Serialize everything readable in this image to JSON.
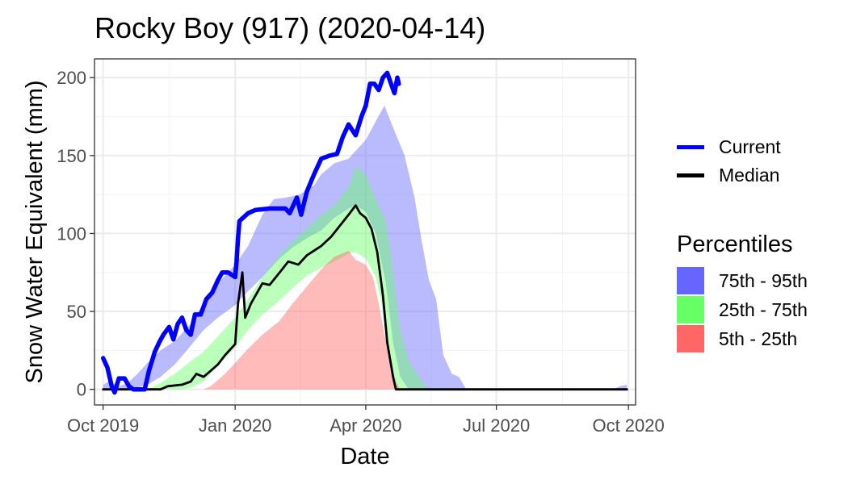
{
  "title": "Rocky Boy (917) (2020-04-14)",
  "chart_data": {
    "type": "area",
    "title": "Rocky Boy (917) (2020-04-14)",
    "xlabel": "Date",
    "ylabel": "Snow Water Equivalent (mm)",
    "x_type": "date",
    "xlim": [
      "2019-09-25",
      "2020-10-06"
    ],
    "ylim": [
      -10,
      212
    ],
    "grid": true,
    "legend_position": "right",
    "x_ticks": [
      {
        "value": "2019-10-01",
        "label": "Oct 2019"
      },
      {
        "value": "2020-01-01",
        "label": "Jan 2020"
      },
      {
        "value": "2020-04-01",
        "label": "Apr 2020"
      },
      {
        "value": "2020-07-01",
        "label": "Jul 2020"
      },
      {
        "value": "2020-10-01",
        "label": "Oct 2020"
      }
    ],
    "y_ticks": [
      0,
      50,
      100,
      150,
      200
    ],
    "colors": {
      "current": "#0000ff",
      "median": "#000000",
      "p75_95": "#6666ff",
      "p25_75": "#66ff66",
      "p5_25": "#ff6666"
    },
    "bands": [
      {
        "name": "75th - 95th",
        "color": "#6666ff",
        "opacity": 0.45,
        "lower": [
          [
            "2019-10-01",
            0
          ],
          [
            "2019-10-10",
            0
          ],
          [
            "2019-10-20",
            0
          ],
          [
            "2019-11-01",
            3
          ],
          [
            "2019-11-10",
            8
          ],
          [
            "2019-11-20",
            16
          ],
          [
            "2019-12-01",
            28
          ],
          [
            "2019-12-10",
            38
          ],
          [
            "2019-12-20",
            46
          ],
          [
            "2020-01-01",
            54
          ],
          [
            "2020-01-10",
            63
          ],
          [
            "2020-01-20",
            72
          ],
          [
            "2020-02-01",
            84
          ],
          [
            "2020-02-10",
            91
          ],
          [
            "2020-02-20",
            97
          ],
          [
            "2020-03-01",
            102
          ],
          [
            "2020-03-10",
            110
          ],
          [
            "2020-03-20",
            116
          ],
          [
            "2020-03-25",
            118
          ],
          [
            "2020-04-01",
            114
          ],
          [
            "2020-04-08",
            100
          ],
          [
            "2020-04-15",
            68
          ],
          [
            "2020-04-20",
            30
          ],
          [
            "2020-04-25",
            8
          ],
          [
            "2020-05-01",
            0
          ],
          [
            "2020-09-30",
            0
          ]
        ],
        "upper": [
          [
            "2019-10-01",
            3
          ],
          [
            "2019-10-05",
            5
          ],
          [
            "2019-10-12",
            2
          ],
          [
            "2019-10-18",
            4
          ],
          [
            "2019-10-25",
            10
          ],
          [
            "2019-11-01",
            17
          ],
          [
            "2019-11-10",
            25
          ],
          [
            "2019-11-20",
            31
          ],
          [
            "2019-12-01",
            42
          ],
          [
            "2019-12-10",
            55
          ],
          [
            "2019-12-20",
            68
          ],
          [
            "2020-01-01",
            80
          ],
          [
            "2020-01-10",
            92
          ],
          [
            "2020-01-20",
            112
          ],
          [
            "2020-01-28",
            122
          ],
          [
            "2020-02-05",
            123
          ],
          [
            "2020-02-15",
            125
          ],
          [
            "2020-02-25",
            131
          ],
          [
            "2020-03-01",
            138
          ],
          [
            "2020-03-10",
            145
          ],
          [
            "2020-03-20",
            148
          ],
          [
            "2020-03-25",
            153
          ],
          [
            "2020-04-01",
            160
          ],
          [
            "2020-04-08",
            172
          ],
          [
            "2020-04-14",
            182
          ],
          [
            "2020-04-20",
            168
          ],
          [
            "2020-04-28",
            150
          ],
          [
            "2020-05-05",
            123
          ],
          [
            "2020-05-10",
            95
          ],
          [
            "2020-05-15",
            70
          ],
          [
            "2020-05-20",
            58
          ],
          [
            "2020-05-25",
            22
          ],
          [
            "2020-05-31",
            10
          ],
          [
            "2020-06-05",
            8
          ],
          [
            "2020-06-10",
            0
          ],
          [
            "2020-09-20",
            0
          ],
          [
            "2020-09-25",
            2
          ],
          [
            "2020-09-30",
            3
          ]
        ]
      },
      {
        "name": "25th - 75th",
        "color": "#66ff66",
        "opacity": 0.45,
        "lower": [
          [
            "2019-10-01",
            0
          ],
          [
            "2019-11-15",
            0
          ],
          [
            "2019-11-25",
            0
          ],
          [
            "2019-12-01",
            1
          ],
          [
            "2019-12-10",
            5
          ],
          [
            "2019-12-20",
            15
          ],
          [
            "2020-01-01",
            27
          ],
          [
            "2020-01-10",
            38
          ],
          [
            "2020-01-20",
            48
          ],
          [
            "2020-02-01",
            57
          ],
          [
            "2020-02-10",
            65
          ],
          [
            "2020-02-20",
            73
          ],
          [
            "2020-03-01",
            78
          ],
          [
            "2020-03-10",
            82
          ],
          [
            "2020-03-20",
            87
          ],
          [
            "2020-03-25",
            88
          ],
          [
            "2020-04-01",
            84
          ],
          [
            "2020-04-08",
            72
          ],
          [
            "2020-04-12",
            55
          ],
          [
            "2020-04-16",
            30
          ],
          [
            "2020-04-20",
            8
          ],
          [
            "2020-04-22",
            0
          ],
          [
            "2020-09-30",
            0
          ]
        ],
        "upper": [
          [
            "2019-10-01",
            0
          ],
          [
            "2019-11-01",
            0
          ],
          [
            "2019-11-10",
            4
          ],
          [
            "2019-11-20",
            10
          ],
          [
            "2019-12-01",
            18
          ],
          [
            "2019-12-10",
            24
          ],
          [
            "2019-12-20",
            34
          ],
          [
            "2020-01-01",
            46
          ],
          [
            "2020-01-10",
            58
          ],
          [
            "2020-01-20",
            72
          ],
          [
            "2020-02-01",
            86
          ],
          [
            "2020-02-10",
            95
          ],
          [
            "2020-02-20",
            103
          ],
          [
            "2020-03-01",
            112
          ],
          [
            "2020-03-10",
            118
          ],
          [
            "2020-03-20",
            130
          ],
          [
            "2020-03-25",
            143
          ],
          [
            "2020-04-01",
            138
          ],
          [
            "2020-04-08",
            122
          ],
          [
            "2020-04-15",
            108
          ],
          [
            "2020-04-20",
            75
          ],
          [
            "2020-04-25",
            38
          ],
          [
            "2020-05-01",
            18
          ],
          [
            "2020-05-08",
            8
          ],
          [
            "2020-05-12",
            3
          ],
          [
            "2020-05-15",
            0
          ],
          [
            "2020-09-30",
            0
          ]
        ]
      },
      {
        "name": "5th - 25th",
        "color": "#ff6666",
        "opacity": 0.45,
        "lower": [
          [
            "2019-10-01",
            0
          ],
          [
            "2020-09-30",
            0
          ]
        ],
        "upper": [
          [
            "2019-10-01",
            0
          ],
          [
            "2019-12-10",
            0
          ],
          [
            "2019-12-15",
            2
          ],
          [
            "2019-12-25",
            10
          ],
          [
            "2020-01-01",
            17
          ],
          [
            "2020-01-10",
            26
          ],
          [
            "2020-01-20",
            35
          ],
          [
            "2020-02-01",
            44
          ],
          [
            "2020-02-10",
            55
          ],
          [
            "2020-02-20",
            66
          ],
          [
            "2020-03-01",
            77
          ],
          [
            "2020-03-10",
            85
          ],
          [
            "2020-03-20",
            89
          ],
          [
            "2020-03-25",
            83
          ],
          [
            "2020-04-01",
            80
          ],
          [
            "2020-04-06",
            72
          ],
          [
            "2020-04-10",
            55
          ],
          [
            "2020-04-14",
            35
          ],
          [
            "2020-04-18",
            20
          ],
          [
            "2020-04-22",
            5
          ],
          [
            "2020-04-25",
            0
          ],
          [
            "2020-09-30",
            0
          ]
        ]
      }
    ],
    "series": [
      {
        "name": "Median",
        "color": "#000000",
        "points": [
          [
            "2019-10-01",
            0
          ],
          [
            "2019-11-10",
            0
          ],
          [
            "2019-11-15",
            2
          ],
          [
            "2019-11-25",
            3
          ],
          [
            "2019-12-01",
            5
          ],
          [
            "2019-12-05",
            10
          ],
          [
            "2019-12-10",
            8
          ],
          [
            "2019-12-15",
            12
          ],
          [
            "2019-12-20",
            16
          ],
          [
            "2019-12-25",
            22
          ],
          [
            "2020-01-01",
            29
          ],
          [
            "2020-01-03",
            55
          ],
          [
            "2020-01-06",
            75
          ],
          [
            "2020-01-08",
            46
          ],
          [
            "2020-01-12",
            55
          ],
          [
            "2020-01-20",
            68
          ],
          [
            "2020-01-25",
            67
          ],
          [
            "2020-02-01",
            75
          ],
          [
            "2020-02-07",
            82
          ],
          [
            "2020-02-14",
            80
          ],
          [
            "2020-02-20",
            86
          ],
          [
            "2020-03-01",
            92
          ],
          [
            "2020-03-08",
            98
          ],
          [
            "2020-03-14",
            105
          ],
          [
            "2020-03-20",
            112
          ],
          [
            "2020-03-25",
            118
          ],
          [
            "2020-03-28",
            113
          ],
          [
            "2020-04-01",
            110
          ],
          [
            "2020-04-05",
            103
          ],
          [
            "2020-04-09",
            88
          ],
          [
            "2020-04-13",
            60
          ],
          [
            "2020-04-16",
            30
          ],
          [
            "2020-04-20",
            8
          ],
          [
            "2020-04-22",
            0
          ],
          [
            "2020-09-30",
            0
          ]
        ]
      },
      {
        "name": "Current",
        "color": "#0000ff",
        "points": [
          [
            "2019-10-01",
            20
          ],
          [
            "2019-10-04",
            14
          ],
          [
            "2019-10-07",
            2
          ],
          [
            "2019-10-09",
            -2
          ],
          [
            "2019-10-12",
            7
          ],
          [
            "2019-10-16",
            7
          ],
          [
            "2019-10-19",
            2
          ],
          [
            "2019-10-22",
            0
          ],
          [
            "2019-10-30",
            0
          ],
          [
            "2019-11-02",
            12
          ],
          [
            "2019-11-06",
            24
          ],
          [
            "2019-11-09",
            30
          ],
          [
            "2019-11-12",
            35
          ],
          [
            "2019-11-16",
            40
          ],
          [
            "2019-11-19",
            32
          ],
          [
            "2019-11-22",
            42
          ],
          [
            "2019-11-25",
            46
          ],
          [
            "2019-11-28",
            38
          ],
          [
            "2019-12-01",
            35
          ],
          [
            "2019-12-04",
            48
          ],
          [
            "2019-12-08",
            48
          ],
          [
            "2019-12-12",
            58
          ],
          [
            "2019-12-16",
            62
          ],
          [
            "2019-12-20",
            70
          ],
          [
            "2019-12-23",
            75
          ],
          [
            "2019-12-27",
            75
          ],
          [
            "2020-01-01",
            72
          ],
          [
            "2020-01-02",
            82
          ],
          [
            "2020-01-03",
            97
          ],
          [
            "2020-01-04",
            108
          ],
          [
            "2020-01-10",
            113
          ],
          [
            "2020-01-15",
            115
          ],
          [
            "2020-01-25",
            116
          ],
          [
            "2020-02-05",
            116
          ],
          [
            "2020-02-08",
            113
          ],
          [
            "2020-02-13",
            123
          ],
          [
            "2020-02-16",
            112
          ],
          [
            "2020-02-20",
            127
          ],
          [
            "2020-02-25",
            138
          ],
          [
            "2020-03-01",
            148
          ],
          [
            "2020-03-07",
            150
          ],
          [
            "2020-03-12",
            151
          ],
          [
            "2020-03-16",
            162
          ],
          [
            "2020-03-20",
            170
          ],
          [
            "2020-03-25",
            163
          ],
          [
            "2020-03-29",
            175
          ],
          [
            "2020-04-01",
            182
          ],
          [
            "2020-04-04",
            196
          ],
          [
            "2020-04-07",
            196
          ],
          [
            "2020-04-10",
            192
          ],
          [
            "2020-04-13",
            200
          ],
          [
            "2020-04-16",
            203
          ],
          [
            "2020-04-19",
            195
          ],
          [
            "2020-04-21",
            190
          ],
          [
            "2020-04-23",
            200
          ],
          [
            "2020-04-24",
            196
          ]
        ]
      }
    ]
  },
  "legend": {
    "series_items": [
      {
        "label": "Current",
        "color": "#0000ff"
      },
      {
        "label": "Median",
        "color": "#000000"
      }
    ],
    "percentiles_title": "Percentiles",
    "percentile_items": [
      {
        "label": "75th - 95th",
        "color": "#6666ff"
      },
      {
        "label": "25th - 75th",
        "color": "#66ff66"
      },
      {
        "label": "5th - 25th",
        "color": "#ff6666"
      }
    ]
  }
}
